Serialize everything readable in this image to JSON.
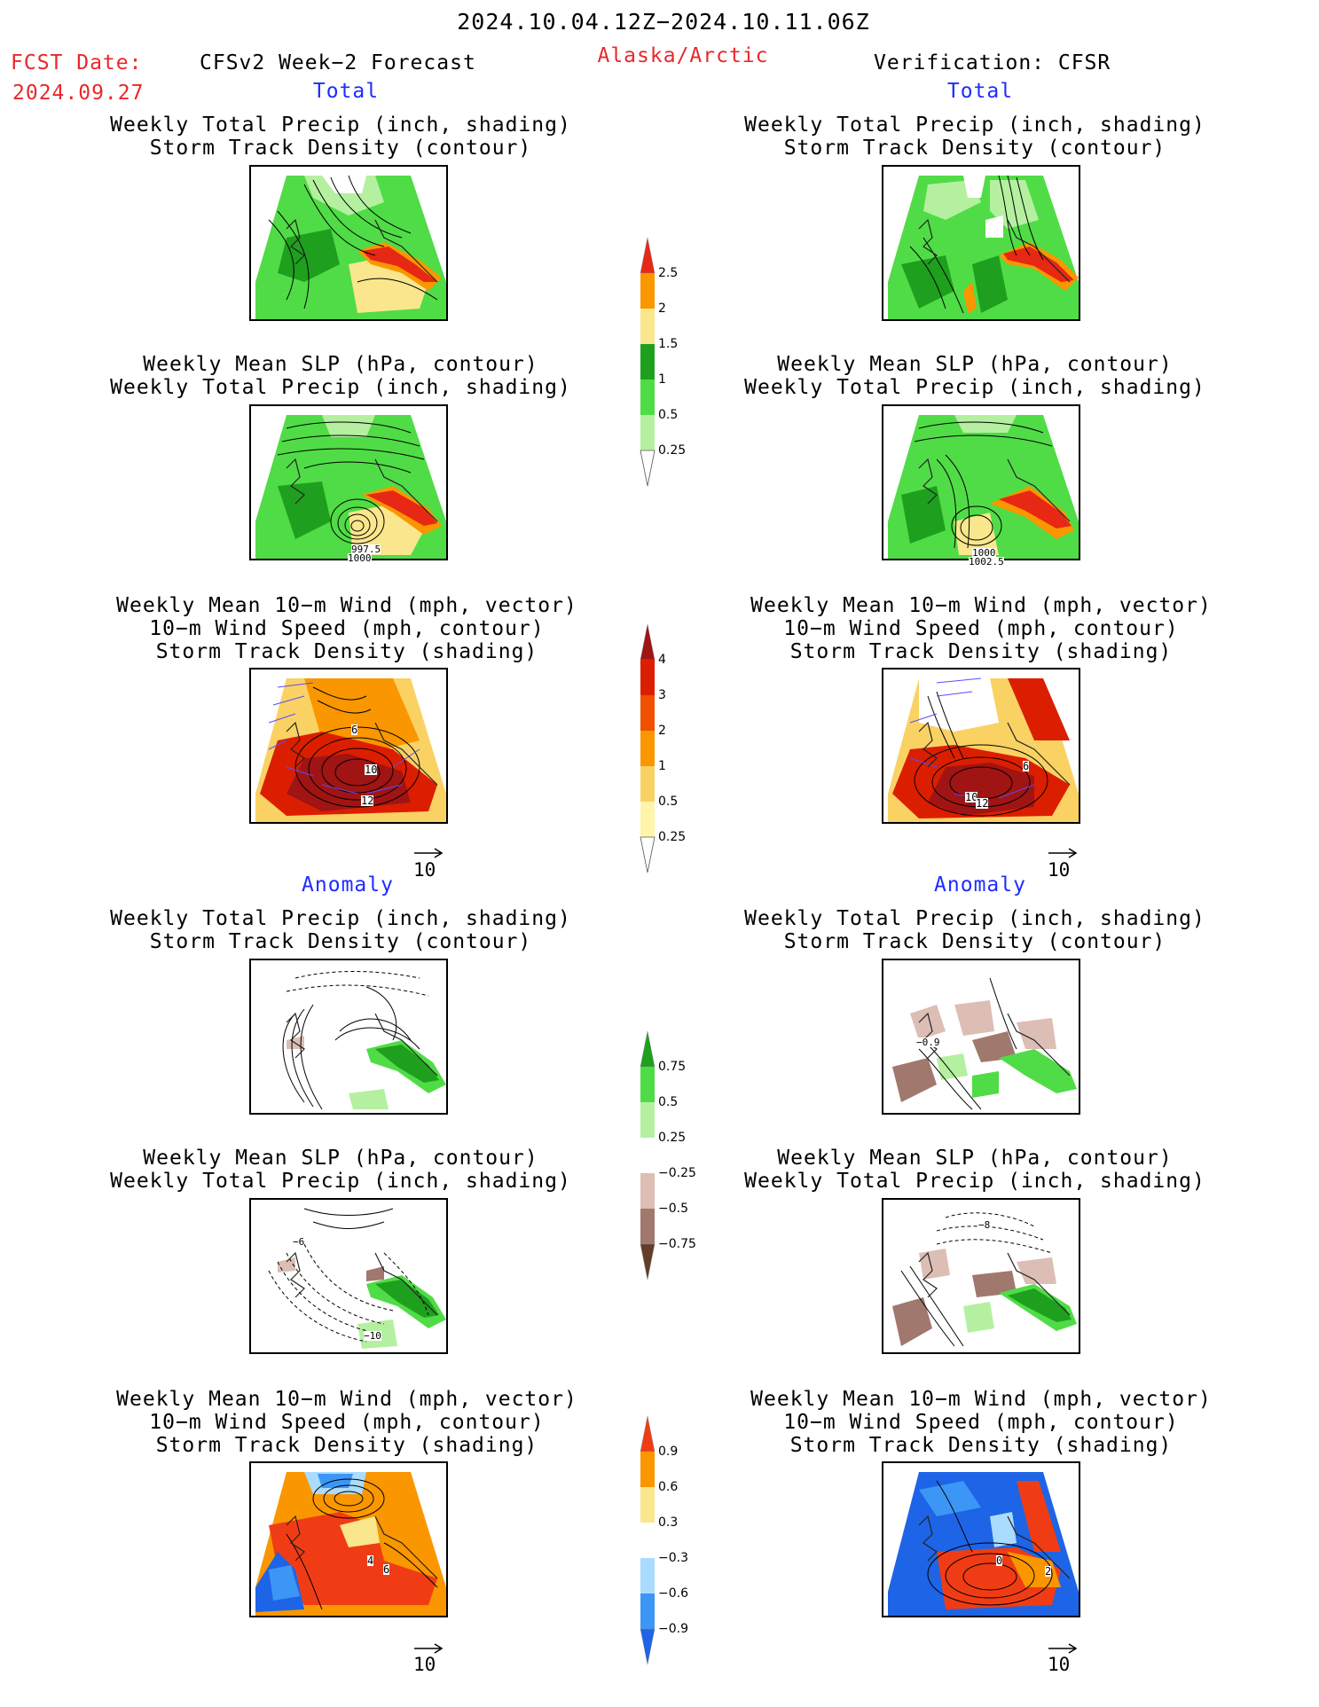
{
  "header": {
    "date_range": "2024.10.04.12Z−2024.10.11.06Z",
    "fcst_label": "FCST Date:",
    "fcst_date": "2024.09.27",
    "forecast_title": "CFSv2 Week−2 Forecast",
    "region": "Alaska/Arctic",
    "verification": "Verification: CFSR"
  },
  "sections": {
    "total": "Total",
    "anomaly": "Anomaly"
  },
  "titles": {
    "precip_storm": "Weekly Total Precip (inch, shading)\nStorm Track Density (contour)",
    "slp_precip": "Weekly Mean SLP (hPa, contour)\nWeekly Total Precip (inch, shading)",
    "wind_storm": "Weekly Mean 10−m Wind (mph, vector)\n10−m Wind Speed (mph, contour)\nStorm Track Density (shading)"
  },
  "vector_scale": "10",
  "colorbars": {
    "precip_total": [
      "2.5",
      "2",
      "1.5",
      "1",
      "0.5",
      "0.25"
    ],
    "storm_total": [
      "4",
      "3",
      "2",
      "1",
      "0.5",
      "0.25"
    ],
    "precip_anom": [
      "0.75",
      "0.5",
      "0.25",
      "−0.25",
      "−0.5",
      "−0.75"
    ],
    "storm_anom": [
      "0.9",
      "0.6",
      "0.3",
      "−0.3",
      "−0.6",
      "−0.9"
    ]
  },
  "map_labels": {
    "slp_fc_a": "997.5",
    "slp_fc_b": "1000",
    "slp_ob_a": "1000",
    "slp_ob_b": "1002.5",
    "wind_fc_a": "6",
    "wind_fc_b": "10",
    "wind_fc_c": "12",
    "wind_ob_a": "6",
    "wind_ob_b": "10",
    "wind_ob_c": "12",
    "anom_prc_ob": "−0.9",
    "anom_slp_fc_a": "−6",
    "anom_slp_fc_b": "−10",
    "anom_slp_ob": "−8",
    "anom_wnd_fc_a": "4",
    "anom_wnd_fc_b": "6",
    "anom_wnd_ob_a": "0",
    "anom_wnd_ob_b": "2"
  },
  "colors": {
    "precip": [
      "#b4f0a0",
      "#50dc46",
      "#1ea01e",
      "#fae68c",
      "#fa9600",
      "#e62814"
    ],
    "storm": [
      "#fff5aa",
      "#fad264",
      "#fa9600",
      "#f05000",
      "#dc1e00",
      "#a01414"
    ],
    "precip_anom": [
      "#643c28",
      "#a0786e",
      "#dcbeb4",
      "#ffffff",
      "#b4f0a0",
      "#50dc46",
      "#1ea01e"
    ],
    "storm_anom": [
      "#1e64e6",
      "#3c96f5",
      "#aadcff",
      "#ffffff",
      "#fae68c",
      "#fa9600",
      "#f03c14"
    ]
  }
}
